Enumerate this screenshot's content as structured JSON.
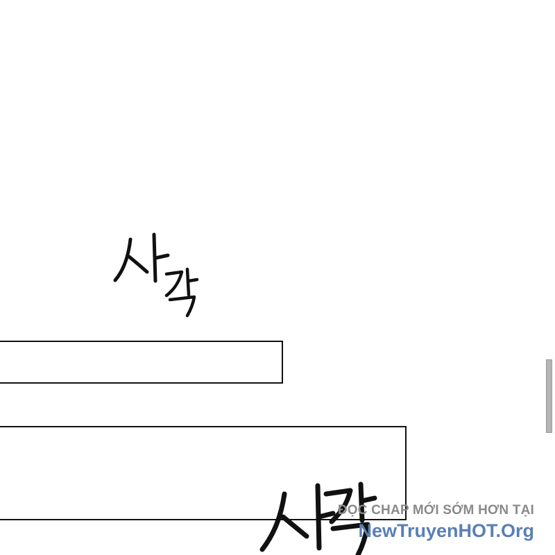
{
  "artwork_lettering": {
    "sfx_top": "사각",
    "sfx_bottom": "사각"
  },
  "watermark": {
    "line1": "ĐỌC CHAP MỚI SỚM HƠN TẠI",
    "line2": "NewTruyenHOT.Org"
  },
  "colors": {
    "watermark_gray": "#8a8a8a",
    "watermark_blue": "#5a7fb5",
    "scrollbar": "#b5b5b5"
  }
}
